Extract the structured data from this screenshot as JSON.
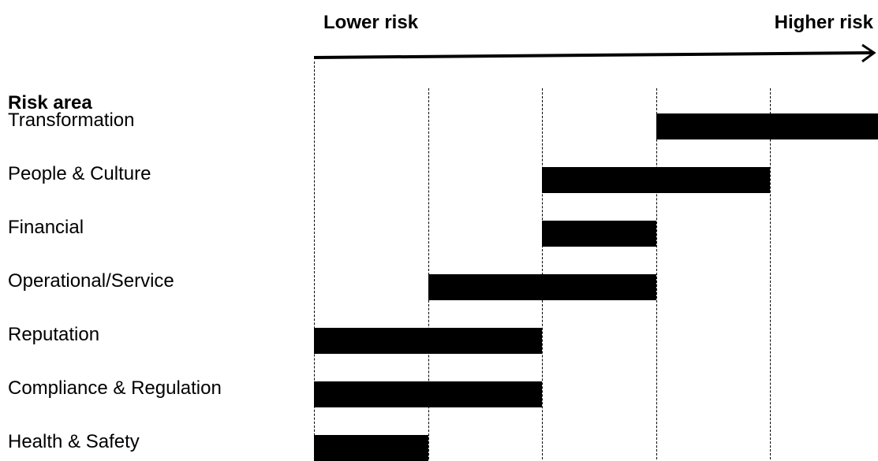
{
  "header": {
    "lower_label": "Lower risk",
    "higher_label": "Higher risk"
  },
  "risk_area_heading": "Risk area",
  "scale": {
    "levels": 5
  },
  "rows": [
    {
      "label": "Transformation",
      "start_level": 4,
      "end_level": 5
    },
    {
      "label": "People & Culture",
      "start_level": 3,
      "end_level": 4
    },
    {
      "label": "Financial",
      "start_level": 3,
      "end_level": 3
    },
    {
      "label": "Operational/Service",
      "start_level": 2,
      "end_level": 3
    },
    {
      "label": "Reputation",
      "start_level": 1,
      "end_level": 2
    },
    {
      "label": "Compliance & Regulation",
      "start_level": 1,
      "end_level": 2
    },
    {
      "label": "Health & Safety",
      "start_level": 1,
      "end_level": 1
    }
  ],
  "colors": {
    "bar": "#000000",
    "text": "#000000",
    "background": "#ffffff"
  }
}
